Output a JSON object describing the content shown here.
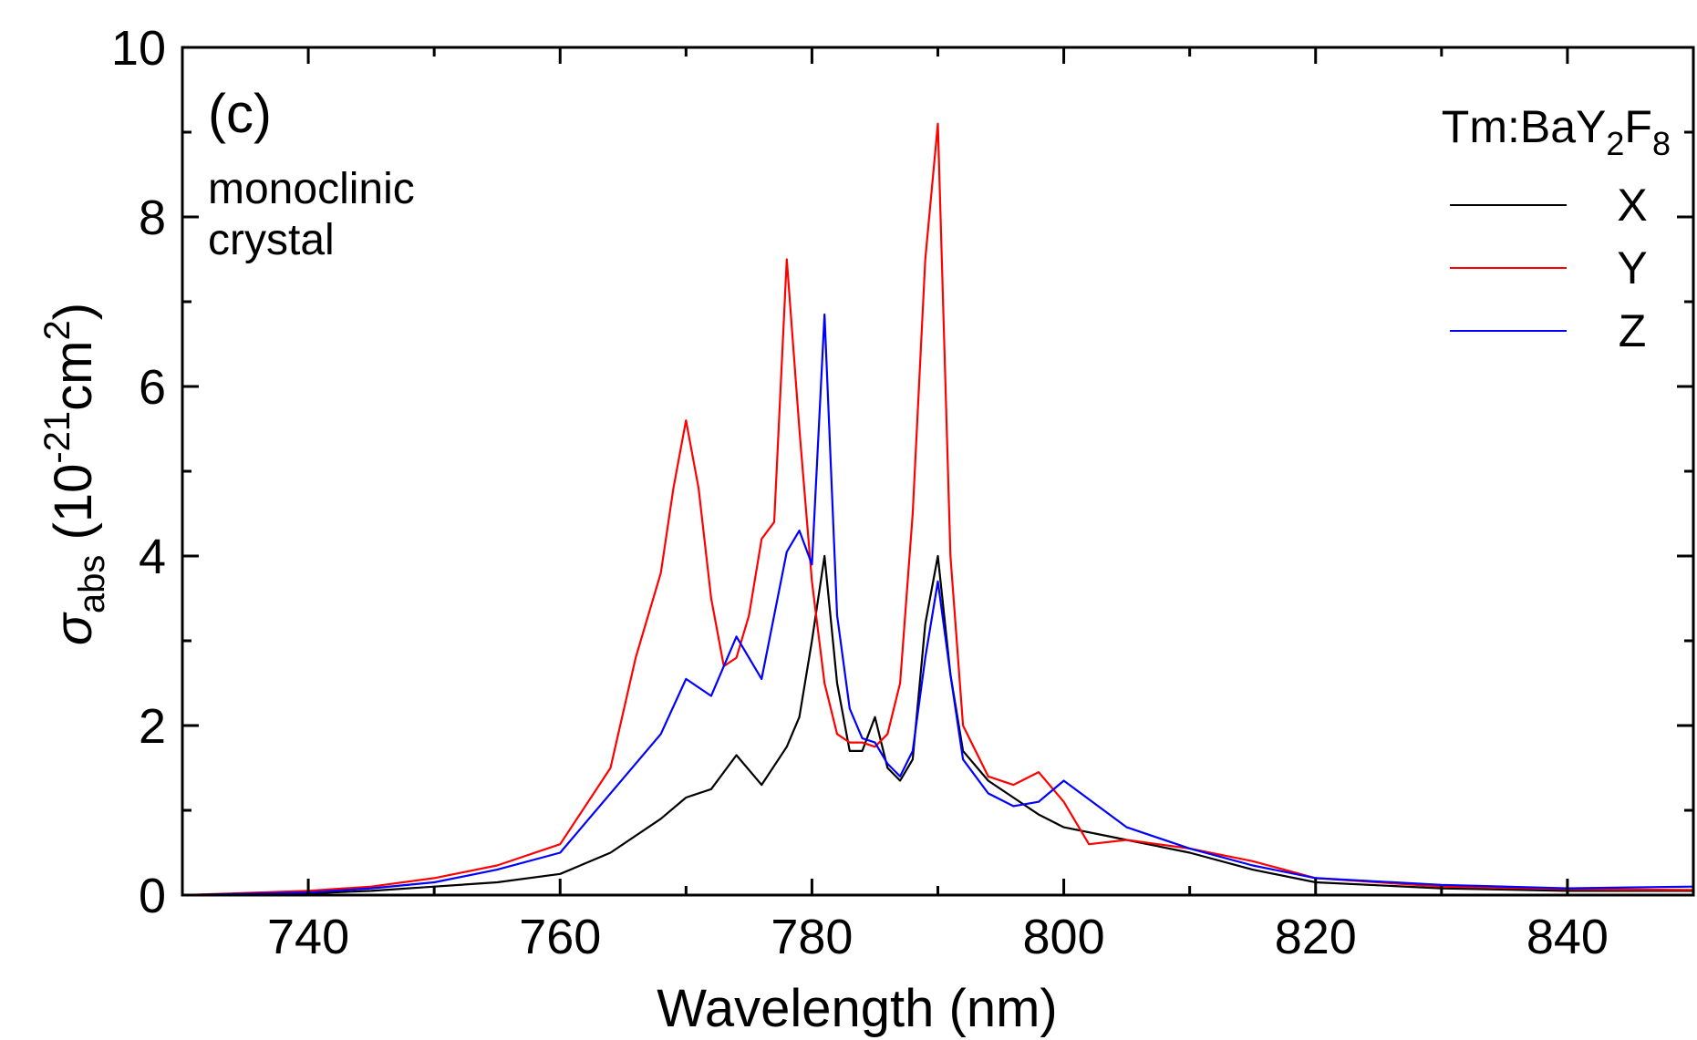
{
  "chart_data": {
    "type": "line",
    "panel_label": "(c)",
    "annotation": [
      "monoclinic",
      "crystal"
    ],
    "xlabel": "Wavelength (nm)",
    "ylabel": {
      "symbol": "σ",
      "subscript": "abs",
      "open": " (10",
      "exponent": "-21",
      "unit": "cm",
      "unit_exponent": "2",
      "close": ")"
    },
    "xlim": [
      730,
      850
    ],
    "ylim": [
      0,
      10
    ],
    "x_ticks": [
      740,
      760,
      780,
      800,
      820,
      840
    ],
    "y_ticks": [
      0,
      2,
      4,
      6,
      8,
      10
    ],
    "x_tick_labels": [
      "740",
      "760",
      "780",
      "800",
      "820",
      "840"
    ],
    "y_tick_labels": [
      "0",
      "2",
      "4",
      "6",
      "8",
      "10"
    ],
    "grid": false,
    "legend": {
      "title": {
        "prefix": "Tm:BaY",
        "sub1": "2",
        "mid": "F",
        "sub2": "8"
      },
      "placement": "top-right"
    },
    "series": [
      {
        "name": "X",
        "color": "#000000",
        "x": [
          730,
          740,
          745,
          750,
          755,
          760,
          764,
          768,
          770,
          772,
          774,
          776,
          778,
          779,
          780,
          781,
          782,
          783,
          784,
          785,
          786,
          787,
          788,
          789,
          790,
          791,
          792,
          794,
          796,
          798,
          800,
          805,
          810,
          815,
          820,
          830,
          840,
          850
        ],
        "y": [
          0.0,
          0.02,
          0.05,
          0.1,
          0.15,
          0.25,
          0.5,
          0.9,
          1.15,
          1.25,
          1.65,
          1.3,
          1.75,
          2.1,
          3.0,
          4.0,
          2.5,
          1.7,
          1.7,
          2.1,
          1.5,
          1.35,
          1.6,
          3.2,
          4.0,
          2.6,
          1.7,
          1.35,
          1.15,
          0.95,
          0.8,
          0.65,
          0.5,
          0.3,
          0.15,
          0.08,
          0.05,
          0.05
        ]
      },
      {
        "name": "Y",
        "color": "#ff0000",
        "x": [
          730,
          740,
          745,
          750,
          755,
          760,
          764,
          766,
          768,
          769,
          770,
          771,
          772,
          773,
          774,
          775,
          776,
          777,
          778,
          779,
          780,
          781,
          782,
          783,
          784,
          785,
          786,
          787,
          788,
          789,
          790,
          791,
          792,
          794,
          796,
          798,
          800,
          802,
          805,
          810,
          815,
          820,
          830,
          840,
          850
        ],
        "y": [
          0.0,
          0.05,
          0.1,
          0.2,
          0.35,
          0.6,
          1.5,
          2.8,
          3.8,
          4.8,
          5.6,
          4.8,
          3.5,
          2.7,
          2.8,
          3.3,
          4.2,
          4.4,
          7.5,
          5.5,
          3.7,
          2.5,
          1.9,
          1.8,
          1.8,
          1.75,
          1.9,
          2.5,
          4.5,
          7.5,
          9.1,
          4.0,
          2.0,
          1.4,
          1.3,
          1.45,
          1.1,
          0.6,
          0.65,
          0.55,
          0.4,
          0.2,
          0.1,
          0.07,
          0.06
        ]
      },
      {
        "name": "Z",
        "color": "#0000ff",
        "x": [
          730,
          740,
          745,
          750,
          755,
          760,
          764,
          768,
          770,
          772,
          774,
          776,
          778,
          779,
          780,
          781,
          782,
          783,
          784,
          785,
          786,
          787,
          788,
          789,
          790,
          791,
          792,
          794,
          796,
          798,
          800,
          805,
          810,
          815,
          820,
          830,
          840,
          850
        ],
        "y": [
          0.0,
          0.03,
          0.08,
          0.15,
          0.3,
          0.5,
          1.2,
          1.9,
          2.55,
          2.35,
          3.05,
          2.55,
          4.05,
          4.3,
          3.9,
          6.85,
          3.3,
          2.2,
          1.85,
          1.8,
          1.55,
          1.4,
          1.7,
          2.8,
          3.7,
          2.6,
          1.6,
          1.2,
          1.05,
          1.1,
          1.35,
          0.8,
          0.55,
          0.35,
          0.2,
          0.12,
          0.08,
          0.1
        ]
      }
    ]
  }
}
